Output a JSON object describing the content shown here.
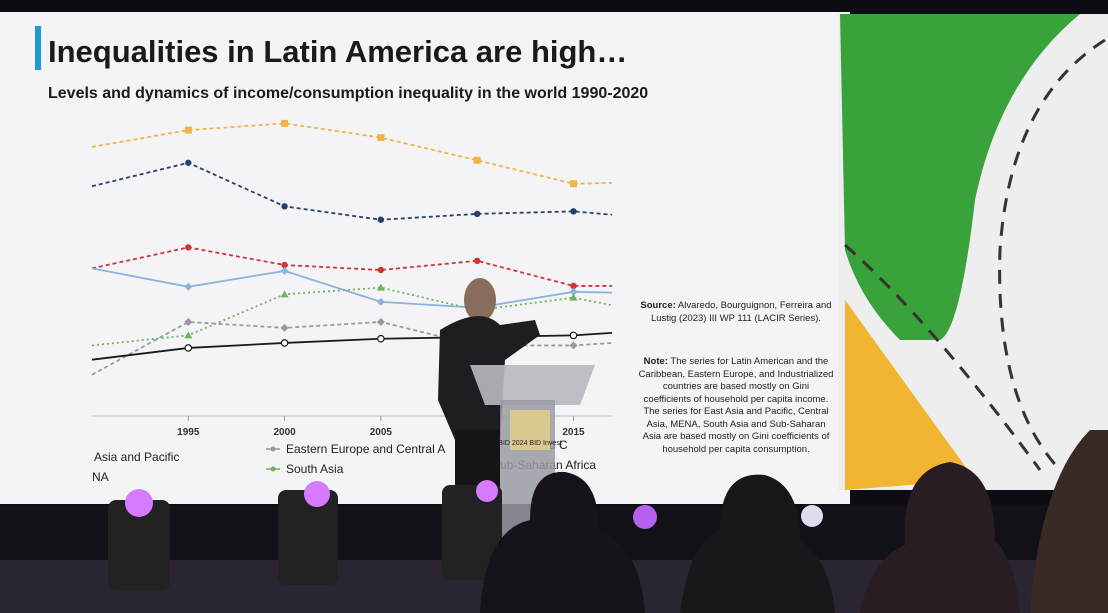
{
  "slide": {
    "title": "Inequalities in Latin America are high…",
    "subtitle": "Levels and dynamics of income/consumption inequality in the world 1990-2020",
    "source_label": "Source:",
    "source_text": "Alvaredo, Bourguignon, Ferreira and Lustig (2023) III WP 111 (LACIR Series).",
    "note_label": "Note:",
    "note_text": "The series for Latin American and the Caribbean, Eastern Europe, and Industrialized countries are based mostly on Gini coefficients of household per capita income. The series for East Asia and Pacific, Central Asia, MENA, South Asia and Sub-Saharan Asia are based mostly on Gini coefficients of household per capita consumption.",
    "podium_sign": "BID 2024 BID Invest"
  },
  "chart_data": {
    "type": "line",
    "x": [
      1990,
      1995,
      2000,
      2005,
      2010,
      2015,
      2017
    ],
    "xlim": [
      1990,
      2017
    ],
    "xticks": [
      1995,
      2000,
      2005,
      2015
    ],
    "ylim": [
      0.25,
      0.62
    ],
    "series": [
      {
        "name": "ub-Saharan Africa",
        "color": "#f0b44a",
        "dash": "4 3",
        "marker": "square",
        "values": [
          0.576,
          0.596,
          0.604,
          0.587,
          0.56,
          0.532,
          0.533
        ]
      },
      {
        "name": "rica and C",
        "color": "#27406e",
        "dash": "4 3",
        "marker": "circle",
        "values": [
          0.529,
          0.557,
          0.505,
          0.489,
          0.496,
          0.499,
          0.495
        ]
      },
      {
        "name": "NA",
        "color": "#d0343a",
        "dash": "4 3",
        "marker": "circle",
        "values": [
          0.431,
          0.456,
          0.435,
          0.429,
          0.44,
          0.41,
          0.41
        ]
      },
      {
        "name": "Asia and Pacific",
        "color": "#8ab2dc",
        "dash": "",
        "marker": "diamond",
        "values": [
          0.431,
          0.409,
          0.428,
          0.391,
          0.384,
          0.403,
          0.402
        ]
      },
      {
        "name": "South Asia",
        "color": "#6fb45a",
        "dash": "2 3",
        "marker": "triangle",
        "values": [
          0.339,
          0.351,
          0.4,
          0.408,
          0.381,
          0.396,
          0.387
        ]
      },
      {
        "name": "Eastern Europe and Central A",
        "color": "#9a9a9a",
        "dash": "4 3",
        "marker": "diamond",
        "values": [
          0.304,
          0.367,
          0.36,
          0.367,
          0.339,
          0.339,
          0.342
        ]
      },
      {
        "color": "#1a1a1a",
        "dash": "",
        "marker": "opencircle",
        "values": [
          0.322,
          0.336,
          0.342,
          0.347,
          0.349,
          0.351,
          0.354
        ]
      }
    ]
  }
}
